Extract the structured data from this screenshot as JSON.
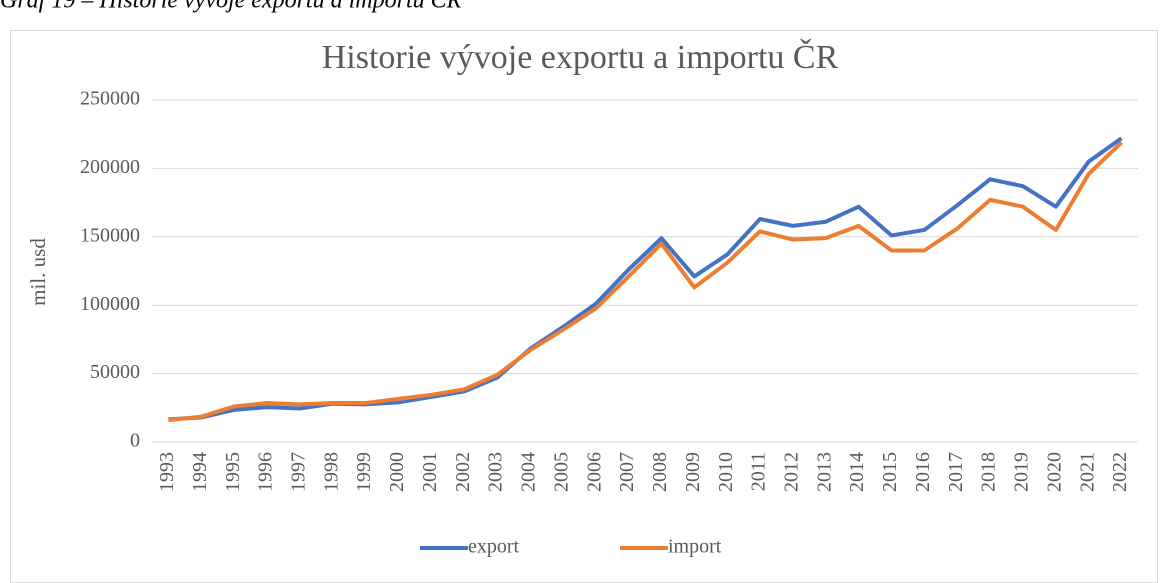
{
  "caption": "Graf 19 – Historie vývoje exportu a importu ČR",
  "chart_data": {
    "type": "line",
    "title": "Historie vývoje exportu a importu ČR",
    "ylabel": "mil. usd",
    "categories": [
      "1993",
      "1994",
      "1995",
      "1996",
      "1997",
      "1998",
      "1999",
      "2000",
      "2001",
      "2002",
      "2003",
      "2004",
      "2005",
      "2006",
      "2007",
      "2008",
      "2009",
      "2010",
      "2011",
      "2012",
      "2013",
      "2014",
      "2015",
      "2016",
      "2017",
      "2018",
      "2019",
      "2020",
      "2021",
      "2022"
    ],
    "series": [
      {
        "name": "export",
        "color": "#4472c4",
        "values": [
          16500,
          18000,
          23500,
          25500,
          24500,
          28000,
          27500,
          29000,
          33000,
          37000,
          47000,
          68000,
          84000,
          101000,
          126000,
          149000,
          121000,
          137000,
          163000,
          158000,
          161000,
          172000,
          151000,
          155000,
          173000,
          192000,
          187000,
          172000,
          205000,
          222000
        ]
      },
      {
        "name": "import",
        "color": "#ed7d31",
        "values": [
          16000,
          18500,
          26000,
          28500,
          27500,
          28500,
          28500,
          31500,
          34500,
          38500,
          49000,
          67000,
          82000,
          97500,
          121000,
          145000,
          113000,
          131000,
          154000,
          148000,
          149000,
          158000,
          140000,
          140000,
          156000,
          177000,
          172000,
          155000,
          196000,
          219000
        ]
      }
    ],
    "ylim": [
      0,
      250000
    ],
    "yticks": [
      0,
      50000,
      100000,
      150000,
      200000,
      250000
    ],
    "grid": true,
    "legend": "bottom"
  }
}
